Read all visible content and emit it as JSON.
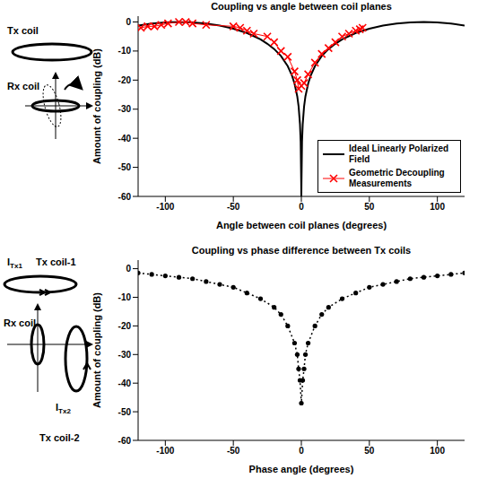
{
  "chart_data": [
    {
      "type": "line",
      "title": "Coupling vs angle between coil planes",
      "x_label": "Angle between coil planes (degrees)",
      "y_label": "Amount of coupling (dB)",
      "xlim": [
        -120,
        120
      ],
      "ylim": [
        -60,
        2
      ],
      "xticks": [
        -100,
        -50,
        0,
        50,
        100
      ],
      "yticks": [
        -60,
        -50,
        -40,
        -30,
        -20,
        -10,
        0
      ],
      "legend": "lower right",
      "series": [
        {
          "name": "Ideal Linearly Polarized Field",
          "color": "#000000",
          "line_style": "solid",
          "marker": "none",
          "x": [
            -120,
            -110,
            -100,
            -90,
            -80,
            -70,
            -60,
            -50,
            -40,
            -30,
            -25,
            -20,
            -15,
            -10,
            -7,
            -5,
            -3,
            -2,
            -1,
            -0.5,
            -0.1,
            0,
            0.1,
            0.5,
            1,
            2,
            3,
            5,
            7,
            10,
            15,
            20,
            25,
            30,
            40,
            50,
            60,
            70,
            80,
            90,
            100,
            110,
            120
          ],
          "values": [
            -1.25,
            -0.54,
            -0.13,
            0,
            -0.13,
            -0.54,
            -1.25,
            -2.3,
            -3.8,
            -6,
            -7.5,
            -9.3,
            -11.7,
            -15.2,
            -18.3,
            -21.2,
            -25.6,
            -29.1,
            -35.2,
            -41.2,
            -55.2,
            -60,
            -55.2,
            -41.2,
            -35.2,
            -29.1,
            -25.6,
            -21.2,
            -18.3,
            -15.2,
            -11.7,
            -9.3,
            -7.5,
            -6,
            -3.8,
            -2.3,
            -1.25,
            -0.54,
            -0.13,
            0,
            -0.13,
            -0.54,
            -1.25
          ]
        },
        {
          "name": "Geometric Decoupling Measurements",
          "color": "#ff0000",
          "line_style": "solid",
          "marker": "x",
          "x": [
            -118,
            -113,
            -108,
            -103,
            -98,
            -90,
            -85,
            -80,
            -70,
            -50,
            -45,
            -40,
            -35,
            -25,
            -20,
            -15,
            -10,
            -5,
            -3,
            -2,
            0,
            2,
            5,
            10,
            15,
            20,
            25,
            30,
            35,
            40,
            43,
            45
          ],
          "values": [
            -2,
            -1.5,
            -1.5,
            -1,
            -0.5,
            0,
            0,
            -0.5,
            -1,
            -1.5,
            -2,
            -3,
            -4,
            -5,
            -7,
            -10,
            -12,
            -17,
            -20,
            -23,
            -22,
            -21,
            -18,
            -14,
            -11,
            -9,
            -7,
            -5,
            -4,
            -3,
            -2.5,
            -2
          ]
        }
      ],
      "annotations": [
        {
          "text": "Tx coil"
        },
        {
          "text": "Rx coil"
        }
      ]
    },
    {
      "type": "line",
      "title": "Coupling vs phase difference between Tx coils",
      "x_label": "Phase angle (degrees)",
      "y_label": "Amount of coupling (dB)",
      "xlim": [
        -120,
        120
      ],
      "ylim": [
        -60,
        3
      ],
      "xticks": [
        -100,
        -50,
        0,
        50,
        100
      ],
      "yticks": [
        -60,
        -50,
        -40,
        -30,
        -20,
        -10,
        0
      ],
      "series": [
        {
          "color": "#000000",
          "line_style": "dotted",
          "marker": "circle",
          "x": [
            -120,
            -110,
            -100,
            -90,
            -80,
            -70,
            -60,
            -50,
            -40,
            -30,
            -20,
            -15,
            -10,
            -5,
            -3,
            -2,
            -1,
            0,
            1,
            2,
            3,
            5,
            10,
            15,
            20,
            30,
            40,
            50,
            60,
            70,
            80,
            90,
            100,
            110,
            120
          ],
          "values": [
            -1.5,
            -2,
            -2.5,
            -3,
            -3.5,
            -4.5,
            -5.5,
            -6.5,
            -8.5,
            -10.5,
            -13.5,
            -16,
            -20,
            -26,
            -30,
            -35,
            -39,
            -47,
            -39,
            -35,
            -30,
            -26,
            -20,
            -16,
            -13.5,
            -10.5,
            -8.5,
            -6.5,
            -5.5,
            -4.5,
            -3.5,
            -3,
            -2.5,
            -2,
            -1.5
          ]
        }
      ],
      "annotations": [
        {
          "text": "I",
          "subscript": "Tx1"
        },
        {
          "text": "Tx coil-1"
        },
        {
          "text": "Rx coil"
        },
        {
          "text": "I",
          "subscript": "Tx2"
        },
        {
          "text": "Tx coil-2"
        }
      ]
    }
  ]
}
